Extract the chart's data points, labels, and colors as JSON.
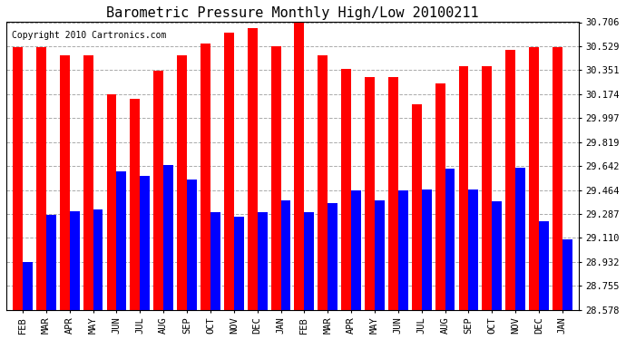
{
  "title": "Barometric Pressure Monthly High/Low 20100211",
  "copyright": "Copyright 2010 Cartronics.com",
  "months": [
    "FEB",
    "MAR",
    "APR",
    "MAY",
    "JUN",
    "JUL",
    "AUG",
    "SEP",
    "OCT",
    "NOV",
    "DEC",
    "JAN",
    "FEB",
    "MAR",
    "APR",
    "MAY",
    "JUN",
    "JUL",
    "AUG",
    "SEP",
    "OCT",
    "NOV",
    "DEC",
    "JAN"
  ],
  "highs": [
    30.52,
    30.52,
    30.46,
    30.46,
    30.17,
    30.14,
    30.35,
    30.46,
    30.55,
    30.63,
    30.66,
    30.53,
    30.72,
    30.46,
    30.36,
    30.3,
    30.3,
    30.1,
    30.25,
    30.38,
    30.38,
    30.5,
    30.52,
    30.52
  ],
  "lows": [
    28.93,
    29.28,
    29.31,
    29.32,
    29.6,
    29.57,
    29.65,
    29.54,
    29.3,
    29.27,
    29.3,
    29.39,
    29.3,
    29.37,
    29.46,
    29.39,
    29.46,
    29.47,
    29.62,
    29.47,
    29.38,
    29.63,
    29.23,
    29.1
  ],
  "yticks": [
    28.578,
    28.755,
    28.932,
    29.11,
    29.287,
    29.464,
    29.642,
    29.819,
    29.997,
    30.174,
    30.351,
    30.529,
    30.706
  ],
  "ylim": [
    28.578,
    30.706
  ],
  "high_color": "#ff0000",
  "low_color": "#0000ff",
  "bg_color": "#ffffff",
  "grid_color": "#aaaaaa",
  "title_fontsize": 11,
  "copyright_fontsize": 7
}
